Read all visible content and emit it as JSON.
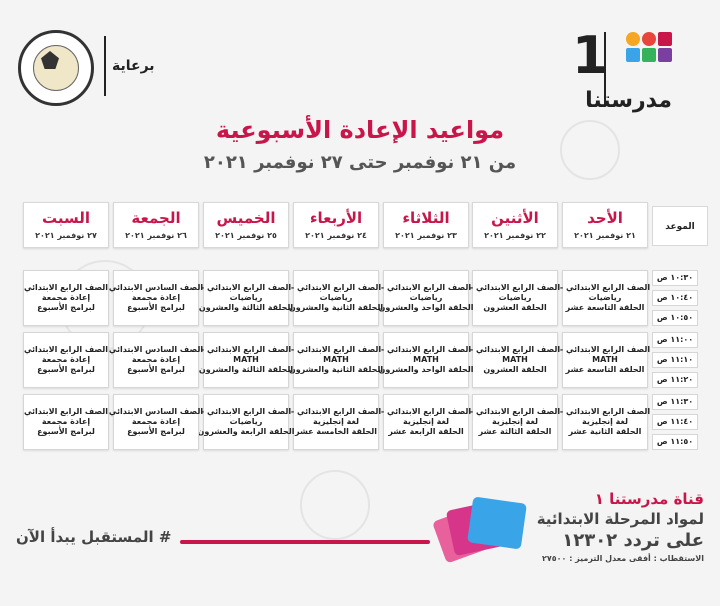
{
  "header": {
    "sponsor": "برعاية",
    "logo_word": "مدرستنا",
    "logo_number": "1"
  },
  "title": "مواعيد الإعادة الأسبوعية",
  "subtitle": "من ٢١ نوفمبر حتى ٢٧ نوفمبر ٢٠٢١",
  "schedule": {
    "time_header": "الموعد",
    "days": [
      {
        "name": "الأحد",
        "date": "٢١ نوفمبر ٢٠٢١"
      },
      {
        "name": "الأثنين",
        "date": "٢٢ نوفمبر ٢٠٢١"
      },
      {
        "name": "الثلاثاء",
        "date": "٢٣ نوفمبر ٢٠٢١"
      },
      {
        "name": "الأربعاء",
        "date": "٢٤ نوفمبر ٢٠٢١"
      },
      {
        "name": "الخميس",
        "date": "٢٥ نوفمبر ٢٠٢١"
      },
      {
        "name": "الجمعة",
        "date": "٢٦ نوفمبر ٢٠٢١"
      },
      {
        "name": "السبت",
        "date": "٢٧ نوفمبر ٢٠٢١"
      }
    ],
    "times": [
      "١٠:٣٠ ص",
      "١٠:٤٠ ص",
      "١٠:٥٠ ص",
      "١١:٠٠ ص",
      "١١:١٠ ص",
      "١١:٢٠ ص",
      "١١:٣٠ ص",
      "١١:٤٠ ص",
      "١١:٥٠ ص"
    ],
    "rows": [
      [
        [
          "الصف الرابع الابتدائي -",
          "رياضيات",
          "الحلقة التاسعة عشر"
        ],
        [
          "الصف الرابع الابتدائي -",
          "رياضيات",
          "الحلقة العشرون"
        ],
        [
          "الصف الرابع الابتدائي -",
          "رياضيات",
          "الحلقة الواحد والعشرون"
        ],
        [
          "الصف الرابع الابتدائي -",
          "رياضيات",
          "الحلقة الثانية والعشرون"
        ],
        [
          "الصف الرابع الابتدائي -",
          "رياضيات",
          "الحلقة الثالثة والعشرون"
        ],
        [
          "الصف السادس الابتدائي",
          "إعادة مجمعة",
          "لبرامج الأسبوع"
        ],
        [
          "الصف الرابع الابتدائي",
          "إعادة مجمعة",
          "لبرامج الأسبوع"
        ]
      ],
      [
        [
          "الصف الرابع الابتدائي -",
          "MATH",
          "الحلقة التاسعة عشر"
        ],
        [
          "الصف الرابع الابتدائي -",
          "MATH",
          "الحلقة العشرون"
        ],
        [
          "الصف الرابع الابتدائي -",
          "MATH",
          "الحلقة الواحد والعشرون"
        ],
        [
          "الصف الرابع الابتدائي -",
          "MATH",
          "الحلقة الثانية والعشرون"
        ],
        [
          "الصف الرابع الابتدائي -",
          "MATH",
          "الحلقة الثالثة والعشرون"
        ],
        [
          "الصف السادس الابتدائي",
          "إعادة مجمعة",
          "لبرامج الأسبوع"
        ],
        [
          "الصف الرابع الابتدائي",
          "إعادة مجمعة",
          "لبرامج الأسبوع"
        ]
      ],
      [
        [
          "الصف الرابع الابتدائي -",
          "لغة إنجليزية",
          "الحلقة الثانية عشر"
        ],
        [
          "الصف الرابع الابتدائي -",
          "لغة إنجليزية",
          "الحلقة الثالثة عشر"
        ],
        [
          "الصف الرابع الابتدائي -",
          "لغة إنجليزية",
          "الحلقة الرابعة عشر"
        ],
        [
          "الصف الرابع الابتدائي -",
          "لغة إنجليزية",
          "الحلقة الخامسة عشر"
        ],
        [
          "الصف الرابع الابتدائي -",
          "رياضيات",
          "الحلقة الرابعة والعشرون"
        ],
        [
          "الصف السادس الابتدائي",
          "إعادة مجمعة",
          "لبرامج الأسبوع"
        ],
        [
          "الصف الرابع الابتدائي",
          "إعادة مجمعة",
          "لبرامج الأسبوع"
        ]
      ]
    ]
  },
  "footer": {
    "channel_line1": "قناة مدرستنا ١",
    "channel_line2": "لمواد المرحلة الابتدائية",
    "channel_line3": "على تردد ١٢٣٠٢",
    "channel_line4": "الاستقطاب : أفقى معدل الترميز : ٢٧٥٠٠",
    "slogan": "# المستقبل يبدأ الآن"
  },
  "colors": {
    "accent": "#c8164b",
    "background": "#f4f4f4"
  }
}
